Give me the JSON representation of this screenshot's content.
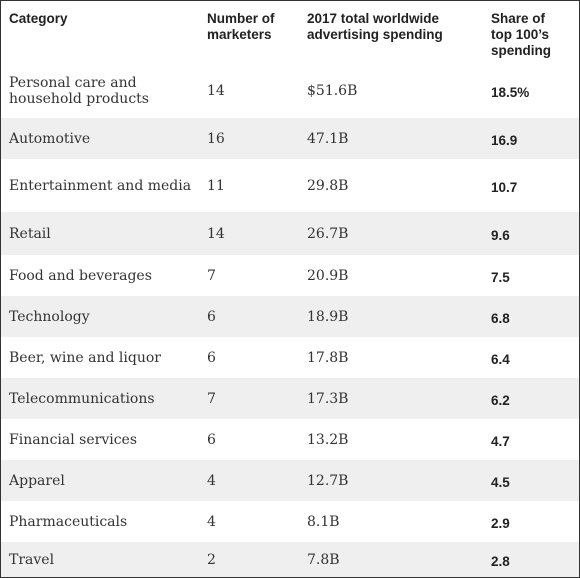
{
  "table": {
    "headers": [
      "Category",
      "Number of marketers",
      "2017 total worldwide advertising spending",
      "Share of top 100’s spending"
    ],
    "rows": [
      [
        "Personal care and household products",
        "14",
        "$51.6B",
        "18.5%"
      ],
      [
        "Automotive",
        "16",
        "47.1B",
        "16.9"
      ],
      [
        "Entertainment and media",
        "11",
        "29.8B",
        "10.7"
      ],
      [
        "Retail",
        "14",
        "26.7B",
        "9.6"
      ],
      [
        "Food and beverages",
        "7",
        "20.9B",
        "7.5"
      ],
      [
        "Technology",
        "6",
        "18.9B",
        "6.8"
      ],
      [
        "Beer, wine and liquor",
        "6",
        "17.8B",
        "6.4"
      ],
      [
        "Telecommunications",
        "7",
        "17.3B",
        "6.2"
      ],
      [
        "Financial services",
        "6",
        "13.2B",
        "4.7"
      ],
      [
        "Apparel",
        "4",
        "12.7B",
        "4.5"
      ],
      [
        "Pharmaceuticals",
        "4",
        "8.1B",
        "2.9"
      ],
      [
        "Travel",
        "2",
        "7.8B",
        "2.8"
      ]
    ]
  }
}
